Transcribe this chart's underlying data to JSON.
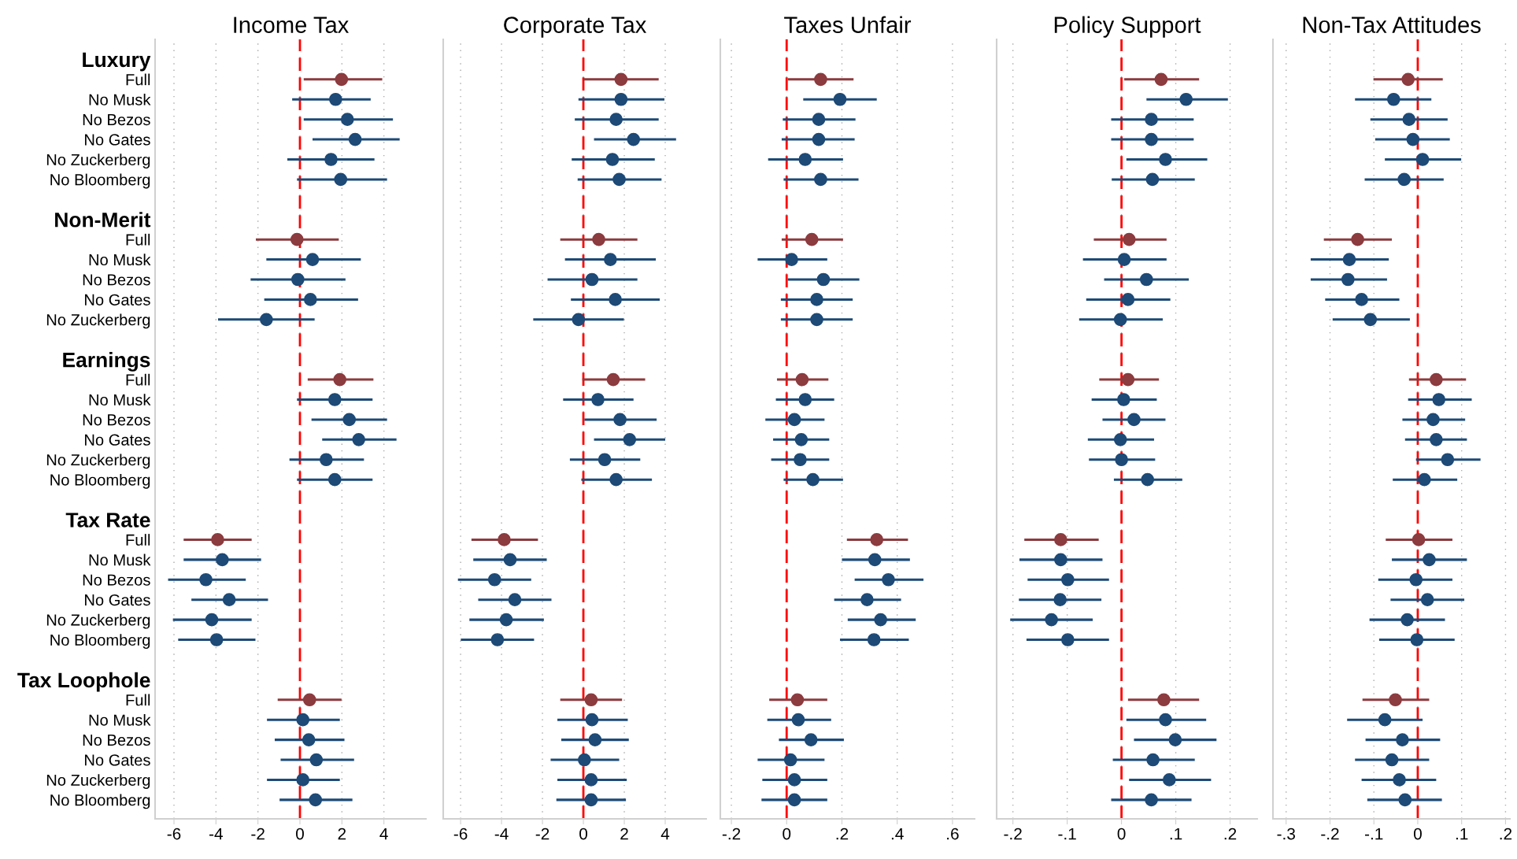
{
  "chart_data": [
    {
      "type": "scatter",
      "orientation": "horizontal",
      "title": "Income Tax",
      "marker": "circle",
      "grid": "x",
      "categories": [
        "Luxury",
        "Full",
        "No Musk",
        "No Bezos",
        "No Gates",
        "No Zuckerberg",
        "No Bloomberg",
        null,
        "Non-Merit",
        "Full",
        "No Musk",
        "No Bezos",
        "No Gates",
        "No Zuckerberg",
        null,
        "Earnings",
        "Full",
        "No Musk",
        "No Bezos",
        "No Gates",
        "No Zuckerberg",
        "No Bloomberg",
        null,
        "Tax Rate",
        "Full",
        "No Musk",
        "No Bezos",
        "No Gates",
        "No Zuckerberg",
        "No Bloomberg",
        null,
        "Tax Loophole",
        "Full",
        "No Musk",
        "No Bezos",
        "No Gates",
        "No Zuckerberg",
        "No Bloomberg"
      ],
      "values": [
        null,
        1.98,
        1.7,
        2.26,
        2.63,
        1.48,
        1.94,
        null,
        null,
        -0.14,
        0.6,
        -0.1,
        0.5,
        -1.6,
        null,
        null,
        1.9,
        1.66,
        2.35,
        2.8,
        1.25,
        1.66,
        null,
        null,
        -3.92,
        -3.7,
        -4.48,
        -3.37,
        -4.2,
        -3.97,
        null,
        null,
        0.46,
        0.14,
        0.42,
        0.78,
        0.14,
        0.74
      ],
      "errors": [
        null,
        [
          0.18,
          3.92
        ],
        [
          -0.37,
          3.37
        ],
        [
          0.18,
          4.43
        ],
        [
          0.6,
          4.75
        ],
        [
          -0.6,
          3.55
        ],
        [
          -0.14,
          4.15
        ],
        null,
        null,
        [
          -2.1,
          1.85
        ],
        [
          -1.6,
          2.9
        ],
        [
          -2.35,
          2.17
        ],
        [
          -1.7,
          2.77
        ],
        [
          -3.9,
          0.7
        ],
        null,
        null,
        [
          0.37,
          3.5
        ],
        [
          -0.14,
          3.46
        ],
        [
          0.55,
          4.15
        ],
        [
          1.06,
          4.6
        ],
        [
          -0.5,
          3.05
        ],
        [
          -0.14,
          3.46
        ],
        null,
        null,
        [
          -5.54,
          -2.3
        ],
        [
          -5.54,
          -1.85
        ],
        [
          -6.28,
          -2.58
        ],
        [
          -5.17,
          -1.52
        ],
        [
          -6.05,
          -2.3
        ],
        [
          -5.8,
          -2.12
        ],
        null,
        null,
        [
          -1.06,
          1.98
        ],
        [
          -1.57,
          1.9
        ],
        [
          -1.2,
          2.12
        ],
        [
          -0.92,
          2.58
        ],
        [
          -1.57,
          1.9
        ],
        [
          -0.97,
          2.5
        ]
      ],
      "colors": [
        null,
        "#8c3b3f",
        "#1d4a77",
        "#1d4a77",
        "#1d4a77",
        "#1d4a77",
        "#1d4a77",
        null,
        null,
        "#8c3b3f",
        "#1d4a77",
        "#1d4a77",
        "#1d4a77",
        "#1d4a77",
        null,
        null,
        "#8c3b3f",
        "#1d4a77",
        "#1d4a77",
        "#1d4a77",
        "#1d4a77",
        "#1d4a77",
        null,
        null,
        "#8c3b3f",
        "#1d4a77",
        "#1d4a77",
        "#1d4a77",
        "#1d4a77",
        "#1d4a77",
        null,
        null,
        "#8c3b3f",
        "#1d4a77",
        "#1d4a77",
        "#1d4a77",
        "#1d4a77",
        "#1d4a77"
      ],
      "xlim": [
        -6.9,
        6
      ],
      "xticks": [
        -6,
        -4,
        -2,
        0,
        2,
        4
      ],
      "ref_lines": [
        {
          "axis": "x",
          "value": 0,
          "color": "#ff0000",
          "line_style": "dashed"
        }
      ]
    },
    {
      "type": "scatter",
      "orientation": "horizontal",
      "title": "Corporate Tax",
      "marker": "circle",
      "grid": "x",
      "tick_labels": "x",
      "categories": [
        null,
        null,
        null,
        null,
        null,
        null,
        null,
        null,
        null,
        null,
        null,
        null,
        null,
        null,
        null,
        null,
        null,
        null,
        null,
        null,
        null,
        null,
        null,
        null,
        null,
        null,
        null,
        null,
        null,
        null,
        null,
        null,
        null,
        null,
        null,
        null,
        null,
        null
      ],
      "values": [
        null,
        1.84,
        1.84,
        1.6,
        2.45,
        1.42,
        1.75,
        null,
        null,
        0.75,
        1.32,
        0.42,
        1.56,
        -0.24,
        null,
        null,
        1.46,
        0.71,
        1.79,
        2.26,
        1.04,
        1.6,
        null,
        null,
        -3.87,
        -3.58,
        -4.34,
        -3.35,
        -3.77,
        -4.2,
        null,
        null,
        0.38,
        0.42,
        0.57,
        0.05,
        0.38,
        0.38
      ],
      "errors": [
        null,
        [
          0,
          3.68
        ],
        [
          -0.24,
          3.96
        ],
        [
          -0.42,
          3.68
        ],
        [
          0.52,
          4.53
        ],
        [
          -0.57,
          3.49
        ],
        [
          -0.28,
          3.82
        ],
        null,
        null,
        [
          -1.13,
          2.64
        ],
        [
          -0.9,
          3.54
        ],
        [
          -1.75,
          2.64
        ],
        [
          -0.61,
          3.73
        ],
        [
          -2.45,
          1.98
        ],
        null,
        null,
        [
          -0.05,
          3.02
        ],
        [
          -0.99,
          2.45
        ],
        [
          0.05,
          3.58
        ],
        [
          0.52,
          4.0
        ],
        [
          -0.66,
          2.78
        ],
        [
          -0.1,
          3.35
        ],
        null,
        null,
        [
          -5.47,
          -2.22
        ],
        [
          -5.38,
          -1.79
        ],
        [
          -6.13,
          -2.55
        ],
        [
          -5.14,
          -1.56
        ],
        [
          -5.57,
          -1.93
        ],
        [
          -5.99,
          -2.41
        ],
        null,
        null,
        [
          -1.13,
          1.89
        ],
        [
          -1.27,
          2.17
        ],
        [
          -1.08,
          2.22
        ],
        [
          -1.6,
          1.75
        ],
        [
          -1.27,
          2.12
        ],
        [
          -1.32,
          2.08
        ]
      ],
      "colors": [
        null,
        "#8c3b3f",
        "#1d4a77",
        "#1d4a77",
        "#1d4a77",
        "#1d4a77",
        "#1d4a77",
        null,
        null,
        "#8c3b3f",
        "#1d4a77",
        "#1d4a77",
        "#1d4a77",
        "#1d4a77",
        null,
        null,
        "#8c3b3f",
        "#1d4a77",
        "#1d4a77",
        "#1d4a77",
        "#1d4a77",
        "#1d4a77",
        null,
        null,
        "#8c3b3f",
        "#1d4a77",
        "#1d4a77",
        "#1d4a77",
        "#1d4a77",
        "#1d4a77",
        null,
        null,
        "#8c3b3f",
        "#1d4a77",
        "#1d4a77",
        "#1d4a77",
        "#1d4a77",
        "#1d4a77"
      ],
      "xlim": [
        -6.85,
        6
      ],
      "xticks": [
        -6,
        -4,
        -2,
        0,
        2,
        4
      ],
      "ref_lines": [
        {
          "axis": "x",
          "value": 0,
          "color": "#ff0000",
          "line_style": "dashed"
        }
      ]
    },
    {
      "type": "scatter",
      "orientation": "horizontal",
      "title": "Taxes Unfair",
      "marker": "circle",
      "grid": "x",
      "tick_labels": "x",
      "categories": [
        null,
        null,
        null,
        null,
        null,
        null,
        null,
        null,
        null,
        null,
        null,
        null,
        null,
        null,
        null,
        null,
        null,
        null,
        null,
        null,
        null,
        null,
        null,
        null,
        null,
        null,
        null,
        null,
        null,
        null,
        null,
        null,
        null,
        null,
        null,
        null,
        null,
        null
      ],
      "values": [
        null,
        0.123,
        0.193,
        0.116,
        0.116,
        0.067,
        0.123,
        null,
        null,
        0.091,
        0.018,
        0.133,
        0.109,
        0.109,
        null,
        null,
        0.056,
        0.067,
        0.028,
        0.053,
        0.049,
        0.095,
        null,
        null,
        0.326,
        0.319,
        0.368,
        0.291,
        0.34,
        0.316,
        null,
        null,
        0.039,
        0.042,
        0.088,
        0.014,
        0.028,
        0.028
      ],
      "errors": [
        null,
        [
          0.004,
          0.242
        ],
        [
          0.06,
          0.326
        ],
        [
          -0.014,
          0.249
        ],
        [
          -0.018,
          0.246
        ],
        [
          -0.067,
          0.204
        ],
        [
          -0.011,
          0.26
        ],
        null,
        null,
        [
          -0.018,
          0.204
        ],
        [
          -0.105,
          0.147
        ],
        [
          0.004,
          0.263
        ],
        [
          -0.021,
          0.239
        ],
        [
          -0.021,
          0.239
        ],
        null,
        null,
        [
          -0.035,
          0.151
        ],
        [
          -0.039,
          0.172
        ],
        [
          -0.077,
          0.137
        ],
        [
          -0.049,
          0.154
        ],
        [
          -0.056,
          0.154
        ],
        [
          -0.011,
          0.204
        ],
        null,
        null,
        [
          0.218,
          0.439
        ],
        [
          0.2,
          0.446
        ],
        [
          0.246,
          0.495
        ],
        [
          0.172,
          0.414
        ],
        [
          0.221,
          0.467
        ],
        [
          0.193,
          0.442
        ],
        null,
        null,
        [
          -0.063,
          0.147
        ],
        [
          -0.07,
          0.161
        ],
        [
          -0.028,
          0.207
        ],
        [
          -0.105,
          0.137
        ],
        [
          -0.088,
          0.147
        ],
        [
          -0.091,
          0.147
        ]
      ],
      "colors": [
        null,
        "#8c3b3f",
        "#1d4a77",
        "#1d4a77",
        "#1d4a77",
        "#1d4a77",
        "#1d4a77",
        null,
        null,
        "#8c3b3f",
        "#1d4a77",
        "#1d4a77",
        "#1d4a77",
        "#1d4a77",
        null,
        null,
        "#8c3b3f",
        "#1d4a77",
        "#1d4a77",
        "#1d4a77",
        "#1d4a77",
        "#1d4a77",
        null,
        null,
        "#8c3b3f",
        "#1d4a77",
        "#1d4a77",
        "#1d4a77",
        "#1d4a77",
        "#1d4a77",
        null,
        null,
        "#8c3b3f",
        "#1d4a77",
        "#1d4a77",
        "#1d4a77",
        "#1d4a77",
        "#1d4a77"
      ],
      "xlim": [
        -0.24,
        0.68
      ],
      "xticks": [
        {
          "value": -0.2,
          "label": "-.2"
        },
        0,
        {
          "value": 0.2,
          "label": ".2"
        },
        {
          "value": 0.4,
          "label": ".4"
        },
        {
          "value": 0.6,
          "label": ".6"
        }
      ],
      "ref_lines": [
        {
          "axis": "x",
          "value": 0,
          "color": "#ff0000",
          "line_style": "dashed"
        }
      ]
    },
    {
      "type": "scatter",
      "orientation": "horizontal",
      "title": "Policy Support",
      "marker": "circle",
      "grid": "x",
      "tick_labels": "x",
      "categories": [
        null,
        null,
        null,
        null,
        null,
        null,
        null,
        null,
        null,
        null,
        null,
        null,
        null,
        null,
        null,
        null,
        null,
        null,
        null,
        null,
        null,
        null,
        null,
        null,
        null,
        null,
        null,
        null,
        null,
        null,
        null,
        null,
        null,
        null,
        null,
        null,
        null,
        null
      ],
      "values": [
        null,
        0.073,
        0.119,
        0.055,
        0.055,
        0.081,
        0.057,
        null,
        null,
        0.014,
        0.005,
        0.046,
        0.012,
        -0.002,
        null,
        null,
        0.012,
        0.004,
        0.023,
        -0.002,
        0,
        0.048,
        null,
        null,
        -0.112,
        -0.112,
        -0.099,
        -0.113,
        -0.129,
        -0.099,
        null,
        null,
        0.078,
        0.081,
        0.099,
        0.058,
        0.088,
        0.055
      ],
      "errors": [
        null,
        [
          0.005,
          0.143
        ],
        [
          0.046,
          0.196
        ],
        [
          -0.019,
          0.133
        ],
        [
          -0.019,
          0.133
        ],
        [
          0.009,
          0.158
        ],
        [
          -0.018,
          0.135
        ],
        null,
        null,
        [
          -0.051,
          0.083
        ],
        [
          -0.071,
          0.083
        ],
        [
          -0.032,
          0.124
        ],
        [
          -0.065,
          0.09
        ],
        [
          -0.078,
          0.076
        ],
        null,
        null,
        [
          -0.041,
          0.069
        ],
        [
          -0.055,
          0.065
        ],
        [
          -0.035,
          0.081
        ],
        [
          -0.062,
          0.06
        ],
        [
          -0.06,
          0.062
        ],
        [
          -0.014,
          0.112
        ],
        null,
        null,
        [
          -0.179,
          -0.042
        ],
        [
          -0.188,
          -0.035
        ],
        [
          -0.173,
          -0.023
        ],
        [
          -0.189,
          -0.037
        ],
        [
          -0.205,
          -0.053
        ],
        [
          -0.175,
          -0.023
        ],
        null,
        null,
        [
          0.012,
          0.143
        ],
        [
          0.009,
          0.156
        ],
        [
          0.023,
          0.175
        ],
        [
          -0.016,
          0.135
        ],
        [
          0.014,
          0.165
        ],
        [
          -0.019,
          0.129
        ]
      ],
      "colors": [
        null,
        "#8c3b3f",
        "#1d4a77",
        "#1d4a77",
        "#1d4a77",
        "#1d4a77",
        "#1d4a77",
        null,
        null,
        "#8c3b3f",
        "#1d4a77",
        "#1d4a77",
        "#1d4a77",
        "#1d4a77",
        null,
        null,
        "#8c3b3f",
        "#1d4a77",
        "#1d4a77",
        "#1d4a77",
        "#1d4a77",
        "#1d4a77",
        null,
        null,
        "#8c3b3f",
        "#1d4a77",
        "#1d4a77",
        "#1d4a77",
        "#1d4a77",
        "#1d4a77",
        null,
        null,
        "#8c3b3f",
        "#1d4a77",
        "#1d4a77",
        "#1d4a77",
        "#1d4a77",
        "#1d4a77"
      ],
      "xlim": [
        -0.23,
        0.25
      ],
      "xticks": [
        {
          "value": -0.2,
          "label": "-.2"
        },
        {
          "value": -0.1,
          "label": "-.1"
        },
        0,
        {
          "value": 0.1,
          "label": ".1"
        },
        {
          "value": 0.2,
          "label": ".2"
        }
      ],
      "ref_lines": [
        {
          "axis": "x",
          "value": 0,
          "color": "#ff0000",
          "line_style": "dashed"
        }
      ]
    },
    {
      "type": "scatter",
      "orientation": "horizontal",
      "title": "Non-Tax Attitudes",
      "marker": "circle",
      "grid": "x",
      "tick_labels": "x",
      "categories": [
        null,
        null,
        null,
        null,
        null,
        null,
        null,
        null,
        null,
        null,
        null,
        null,
        null,
        null,
        null,
        null,
        null,
        null,
        null,
        null,
        null,
        null,
        null,
        null,
        null,
        null,
        null,
        null,
        null,
        null,
        null,
        null,
        null,
        null,
        null,
        null,
        null,
        null
      ],
      "values": [
        null,
        -0.022,
        -0.055,
        -0.02,
        -0.011,
        0.011,
        -0.031,
        null,
        null,
        -0.137,
        -0.156,
        -0.159,
        -0.128,
        -0.108,
        null,
        null,
        0.042,
        0.048,
        0.035,
        0.042,
        0.068,
        0.015,
        null,
        null,
        0.002,
        0.026,
        -0.004,
        0.022,
        -0.024,
        -0.002,
        null,
        null,
        -0.051,
        -0.075,
        -0.035,
        -0.059,
        -0.042,
        -0.029
      ],
      "errors": [
        null,
        [
          -0.101,
          0.057
        ],
        [
          -0.143,
          0.031
        ],
        [
          -0.108,
          0.068
        ],
        [
          -0.097,
          0.073
        ],
        [
          -0.075,
          0.099
        ],
        [
          -0.121,
          0.059
        ],
        null,
        null,
        [
          -0.214,
          -0.059
        ],
        [
          -0.244,
          -0.066
        ],
        [
          -0.244,
          -0.07
        ],
        [
          -0.211,
          -0.042
        ],
        [
          -0.194,
          -0.018
        ],
        null,
        null,
        [
          -0.02,
          0.11
        ],
        [
          -0.022,
          0.123
        ],
        [
          -0.035,
          0.108
        ],
        [
          -0.029,
          0.112
        ],
        [
          -0.004,
          0.143
        ],
        [
          -0.057,
          0.09
        ],
        null,
        null,
        [
          -0.073,
          0.079
        ],
        [
          -0.059,
          0.112
        ],
        [
          -0.09,
          0.079
        ],
        [
          -0.062,
          0.106
        ],
        [
          -0.11,
          0.062
        ],
        [
          -0.088,
          0.084
        ],
        null,
        null,
        [
          -0.126,
          0.026
        ],
        [
          -0.161,
          0.011
        ],
        [
          -0.119,
          0.051
        ],
        [
          -0.143,
          0.026
        ],
        [
          -0.128,
          0.042
        ],
        [
          -0.115,
          0.055
        ]
      ],
      "colors": [
        null,
        "#8c3b3f",
        "#1d4a77",
        "#1d4a77",
        "#1d4a77",
        "#1d4a77",
        "#1d4a77",
        null,
        null,
        "#8c3b3f",
        "#1d4a77",
        "#1d4a77",
        "#1d4a77",
        "#1d4a77",
        null,
        null,
        "#8c3b3f",
        "#1d4a77",
        "#1d4a77",
        "#1d4a77",
        "#1d4a77",
        "#1d4a77",
        null,
        null,
        "#8c3b3f",
        "#1d4a77",
        "#1d4a77",
        "#1d4a77",
        "#1d4a77",
        "#1d4a77",
        null,
        null,
        "#8c3b3f",
        "#1d4a77",
        "#1d4a77",
        "#1d4a77",
        "#1d4a77",
        "#1d4a77"
      ],
      "xlim": [
        -0.33,
        0.21
      ],
      "xticks": [
        {
          "value": -0.3,
          "label": "-.3"
        },
        {
          "value": -0.2,
          "label": "-.2"
        },
        {
          "value": -0.1,
          "label": "-.1"
        },
        0,
        {
          "value": 0.1,
          "label": ".1"
        },
        {
          "value": 0.2,
          "label": ".2"
        }
      ],
      "ref_lines": [
        {
          "axis": "x",
          "value": 0,
          "color": "#ff0000",
          "line_style": "dashed"
        }
      ]
    }
  ]
}
